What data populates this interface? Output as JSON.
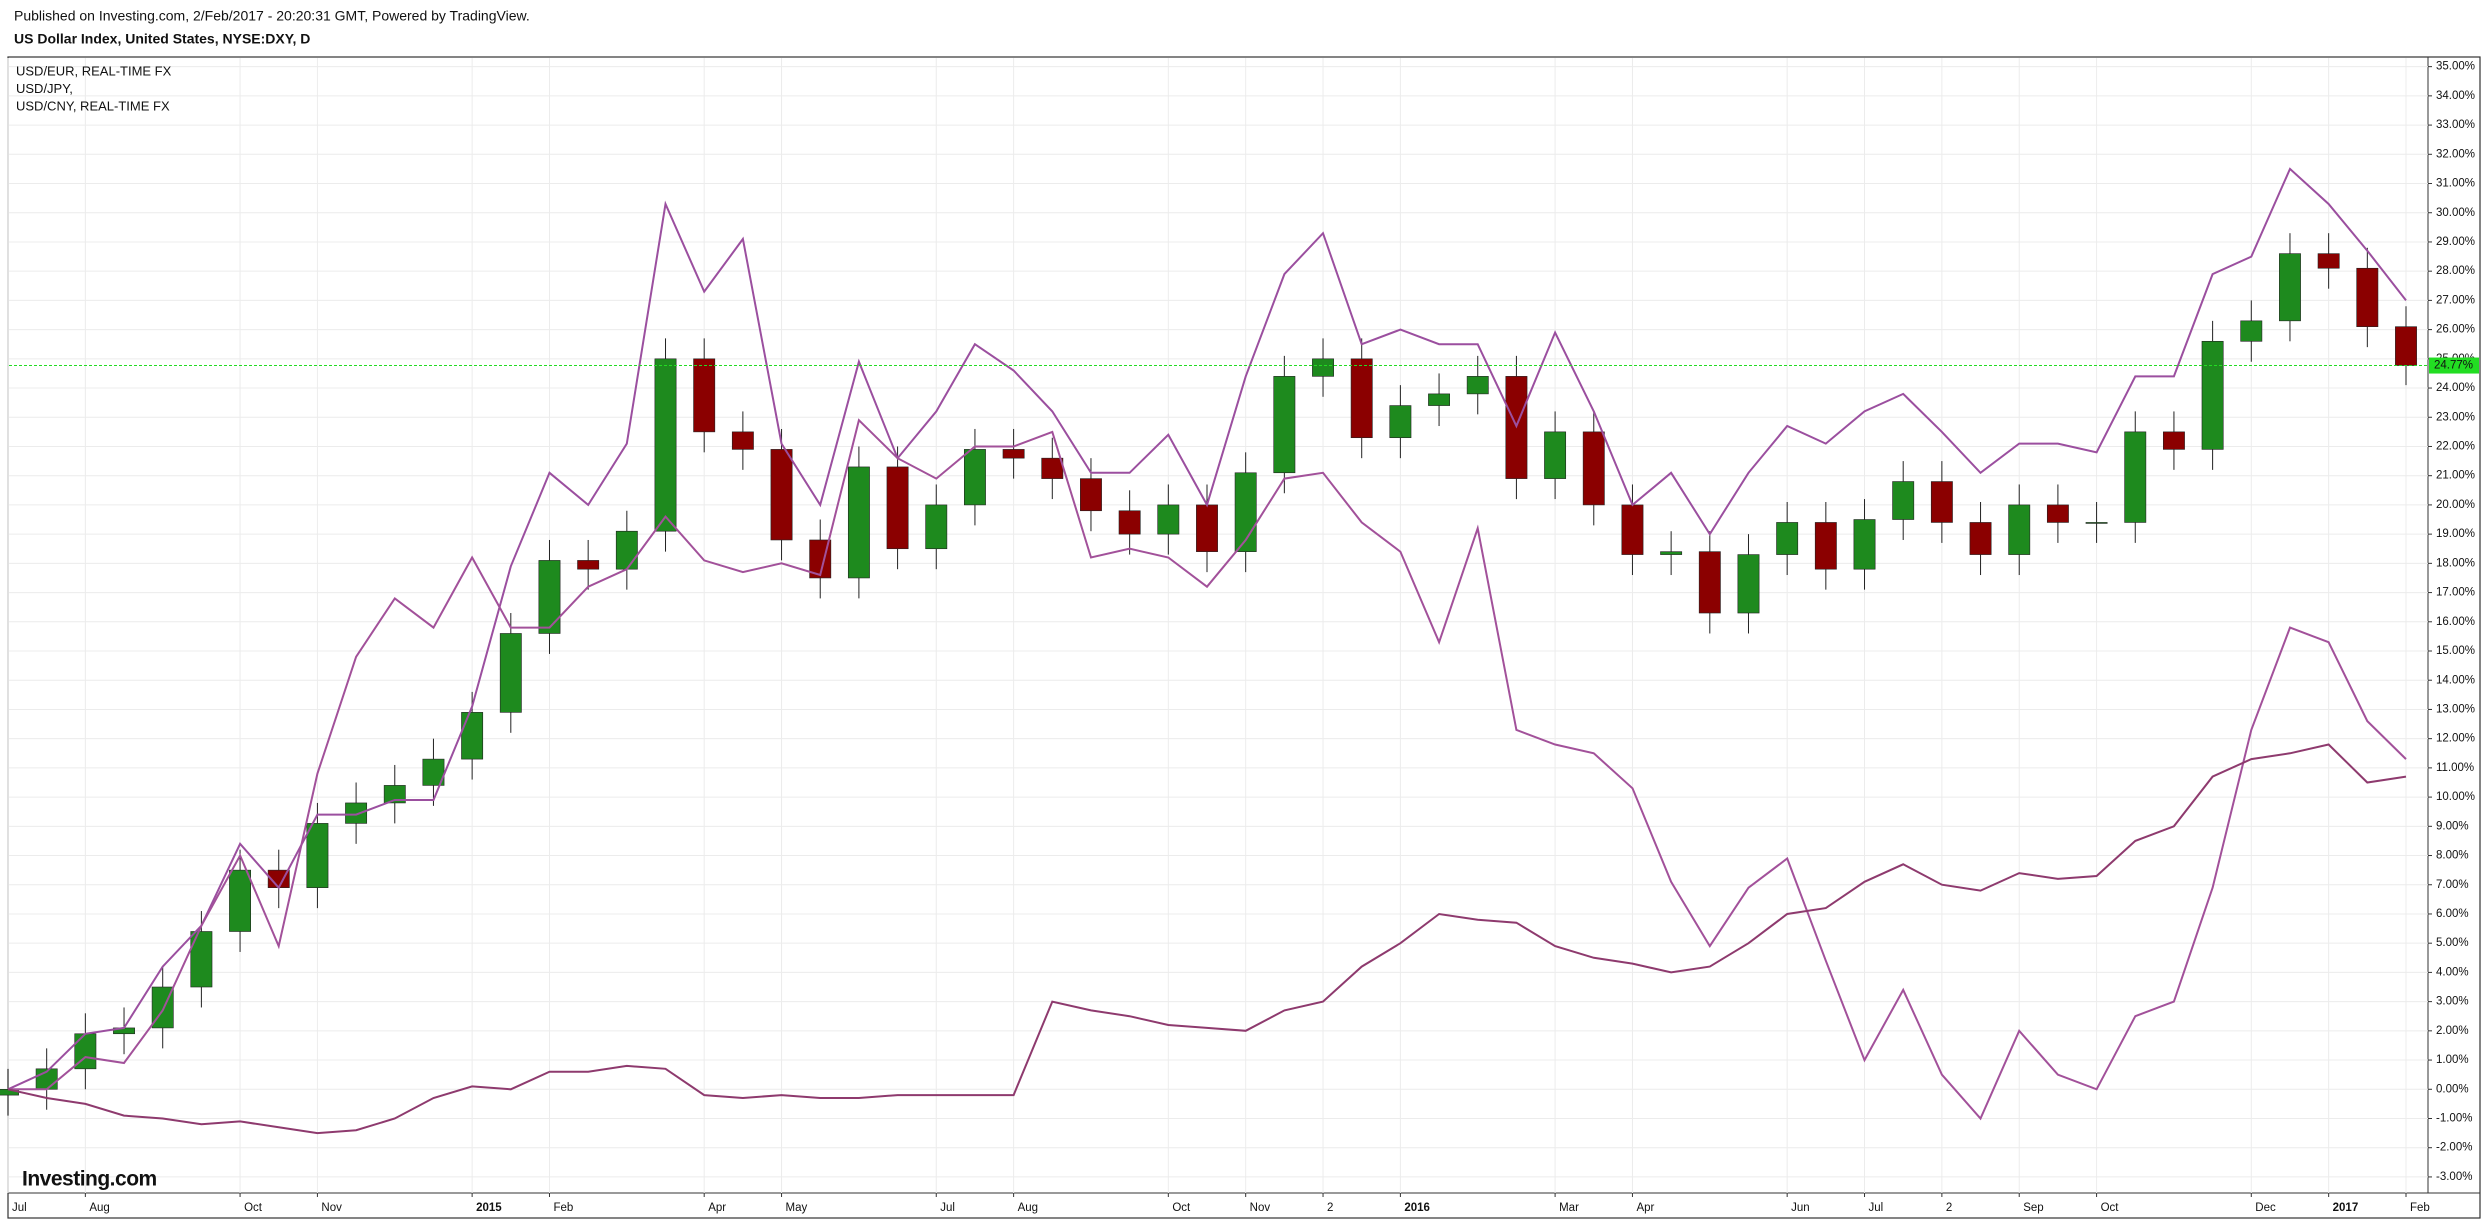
{
  "chart_data": {
    "type": "candlestick",
    "subtitle": "Published on Investing.com, 2/Feb/2017 - 20:20:31 GMT, Powered by TradingView.",
    "title": "US Dollar Index, United States, NYSE:DXY, D",
    "logo": "Investing.com",
    "categories": [
      "Jul",
      null,
      "Aug",
      null,
      null,
      null,
      "Oct",
      null,
      "Nov",
      null,
      null,
      null,
      "2015",
      null,
      "Feb",
      null,
      null,
      null,
      "Apr",
      null,
      "May",
      null,
      null,
      null,
      "Jul",
      null,
      "Aug",
      null,
      null,
      null,
      "Oct",
      null,
      "Nov",
      null,
      "2",
      null,
      "2016",
      null,
      null,
      null,
      "Mar",
      null,
      "Apr",
      null,
      null,
      null,
      "Jun",
      null,
      "Jul",
      null,
      "2",
      null,
      "Sep",
      null,
      "Oct",
      null,
      null,
      null,
      "Dec",
      null,
      "2017",
      null,
      "Feb"
    ],
    "candles": {
      "up_color": "#1e8a1e",
      "down_color": "#8b0000",
      "open": [
        -0.2,
        0,
        0.7,
        1.9,
        2.1,
        3.5,
        5.4,
        7.5,
        6.9,
        9.1,
        9.8,
        10.4,
        11.3,
        12.9,
        15.6,
        18.1,
        17.8,
        19.1,
        25,
        22.5,
        21.9,
        18.8,
        17.5,
        21.3,
        18.5,
        20,
        21.9,
        21.6,
        20.9,
        19.8,
        19,
        20,
        18.4,
        21.1,
        24.4,
        25,
        22.3,
        23.4,
        23.8,
        24.4,
        20.9,
        22.5,
        20,
        18.3,
        18.4,
        16.3,
        18.3,
        19.4,
        17.8,
        19.5,
        20.8,
        19.4,
        18.3,
        20,
        19.4,
        19.4,
        22.5,
        21.9,
        25.6,
        26.3,
        28.6,
        28.1,
        26.1
      ],
      "high": [
        0.7,
        1.4,
        2.6,
        2.8,
        4.2,
        6.1,
        8.2,
        8.2,
        9.8,
        10.5,
        11.1,
        12.0,
        13.6,
        16.3,
        18.8,
        18.8,
        19.8,
        25.7,
        25.7,
        23.2,
        22.6,
        19.5,
        22.0,
        22.0,
        20.7,
        22.6,
        22.6,
        22.3,
        21.6,
        20.5,
        20.7,
        20.7,
        21.8,
        25.1,
        25.7,
        25.7,
        24.1,
        24.5,
        25.1,
        25.1,
        23.2,
        23.2,
        20.7,
        19.1,
        19.1,
        19.0,
        20.1,
        20.1,
        20.2,
        21.5,
        21.5,
        20.1,
        20.7,
        20.7,
        20.1,
        23.2,
        23.2,
        26.3,
        27.0,
        29.3,
        29.3,
        28.8,
        26.8
      ],
      "low": [
        -0.9,
        -0.7,
        0.0,
        1.2,
        1.4,
        2.8,
        4.7,
        6.2,
        6.2,
        8.4,
        9.1,
        9.7,
        10.6,
        12.2,
        14.9,
        17.1,
        17.1,
        18.4,
        21.8,
        21.2,
        18.1,
        16.8,
        16.8,
        17.8,
        17.8,
        19.3,
        20.9,
        20.2,
        19.1,
        18.3,
        18.3,
        17.7,
        17.7,
        20.4,
        23.7,
        21.6,
        21.6,
        22.7,
        23.1,
        20.2,
        20.2,
        19.3,
        17.6,
        17.6,
        15.6,
        15.6,
        17.6,
        17.1,
        17.1,
        18.8,
        18.7,
        17.6,
        17.6,
        18.7,
        18.7,
        18.7,
        21.2,
        21.2,
        24.9,
        25.6,
        27.4,
        25.4,
        24.1
      ],
      "close": [
        0,
        0.7,
        1.9,
        2.1,
        3.5,
        5.4,
        7.5,
        6.9,
        9.1,
        9.8,
        10.4,
        11.3,
        12.9,
        15.6,
        18.1,
        17.8,
        19.1,
        25,
        22.5,
        21.9,
        18.8,
        17.5,
        21.3,
        18.5,
        20,
        21.9,
        21.6,
        20.9,
        19.8,
        19,
        20,
        18.4,
        21.1,
        24.4,
        25,
        22.3,
        23.4,
        23.8,
        24.4,
        20.9,
        22.5,
        20,
        18.3,
        18.4,
        16.3,
        18.3,
        19.4,
        17.8,
        19.5,
        20.8,
        19.4,
        18.3,
        20,
        19.4,
        19.4,
        22.5,
        21.9,
        25.6,
        26.3,
        28.6,
        28.1,
        26.1,
        24.77
      ]
    },
    "last_price": {
      "value": 24.77,
      "label": "24.77%",
      "color": "#22dd22"
    },
    "series": [
      {
        "name": "USD/EUR, REAL-TIME FX",
        "color": "#9b4f9f",
        "values": [
          0,
          0.6,
          1.9,
          2.1,
          4.2,
          5.6,
          8.4,
          6.9,
          9.4,
          9.4,
          9.9,
          9.9,
          13.1,
          17.9,
          21.1,
          20,
          22.1,
          30.3,
          27.3,
          29.1,
          22.1,
          20,
          24.9,
          21.6,
          23.2,
          25.5,
          24.6,
          23.2,
          21.1,
          21.1,
          22.4,
          20,
          24.4,
          27.9,
          29.3,
          25.5,
          26,
          25.5,
          25.5,
          22.7,
          25.9,
          23.2,
          20,
          21.1,
          19,
          21.1,
          22.7,
          22.1,
          23.2,
          23.8,
          22.5,
          21.1,
          22.1,
          22.1,
          21.8,
          24.4,
          24.4,
          27.9,
          28.5,
          31.5,
          30.3,
          28.7,
          27
        ]
      },
      {
        "name": "USD/JPY,",
        "color": "#a2519a",
        "values": [
          0,
          0,
          1.1,
          0.9,
          2.7,
          5.6,
          8,
          4.9,
          10.8,
          14.8,
          16.8,
          15.8,
          18.2,
          15.8,
          15.8,
          17.2,
          17.8,
          19.6,
          18.1,
          17.7,
          18,
          17.6,
          22.9,
          21.6,
          20.9,
          22,
          22,
          22.5,
          18.2,
          18.5,
          18.2,
          17.2,
          18.8,
          20.9,
          21.1,
          19.4,
          18.4,
          15.3,
          19.2,
          12.3,
          11.8,
          11.5,
          10.3,
          7.1,
          4.9,
          6.9,
          7.9,
          4.4,
          1,
          3.4,
          0.5,
          -1,
          2,
          0.5,
          0,
          2.5,
          3,
          6.9,
          12.3,
          15.8,
          15.3,
          12.6,
          11.3
        ]
      },
      {
        "name": "USD/CNY, REAL-TIME FX",
        "color": "#8e3a6e",
        "values": [
          0,
          -0.3,
          -0.5,
          -0.9,
          -1.0,
          -1.2,
          -1.1,
          -1.3,
          -1.5,
          -1.4,
          -1.0,
          -0.3,
          0.1,
          0.0,
          0.6,
          0.6,
          0.8,
          0.7,
          -0.2,
          -0.3,
          -0.2,
          -0.3,
          -0.3,
          -0.2,
          -0.2,
          -0.2,
          -0.2,
          3.0,
          2.7,
          2.5,
          2.2,
          2.1,
          2.0,
          2.7,
          3.0,
          4.2,
          5.0,
          6.0,
          5.8,
          5.7,
          4.9,
          4.5,
          4.3,
          4.0,
          4.2,
          5.0,
          6.0,
          6.2,
          7.1,
          7.7,
          7.0,
          6.8,
          7.4,
          7.2,
          7.3,
          8.5,
          9.0,
          10.7,
          11.3,
          11.5,
          11.8,
          10.5,
          10.7
        ]
      }
    ],
    "ylim": [
      -3.55,
      35.33
    ],
    "yticks": [
      {
        "value": 35,
        "label": "35.00%"
      },
      {
        "value": 34,
        "label": "34.00%"
      },
      {
        "value": 33,
        "label": "33.00%"
      },
      {
        "value": 32,
        "label": "32.00%"
      },
      {
        "value": 31,
        "label": "31.00%"
      },
      {
        "value": 30,
        "label": "30.00%"
      },
      {
        "value": 29,
        "label": "29.00%"
      },
      {
        "value": 28,
        "label": "28.00%"
      },
      {
        "value": 27,
        "label": "27.00%"
      },
      {
        "value": 26,
        "label": "26.00%"
      },
      {
        "value": 25,
        "label": "25.00%"
      },
      {
        "value": 24,
        "label": "24.00%"
      },
      {
        "value": 23,
        "label": "23.00%"
      },
      {
        "value": 22,
        "label": "22.00%"
      },
      {
        "value": 21,
        "label": "21.00%"
      },
      {
        "value": 20,
        "label": "20.00%"
      },
      {
        "value": 19,
        "label": "19.00%"
      },
      {
        "value": 18,
        "label": "18.00%"
      },
      {
        "value": 17,
        "label": "17.00%"
      },
      {
        "value": 16,
        "label": "16.00%"
      },
      {
        "value": 15,
        "label": "15.00%"
      },
      {
        "value": 14,
        "label": "14.00%"
      },
      {
        "value": 13,
        "label": "13.00%"
      },
      {
        "value": 12,
        "label": "12.00%"
      },
      {
        "value": 11,
        "label": "11.00%"
      },
      {
        "value": 10,
        "label": "10.00%"
      },
      {
        "value": 9,
        "label": "9.00%"
      },
      {
        "value": 8,
        "label": "8.00%"
      },
      {
        "value": 7,
        "label": "7.00%"
      },
      {
        "value": 6,
        "label": "6.00%"
      },
      {
        "value": 5,
        "label": "5.00%"
      },
      {
        "value": 4,
        "label": "4.00%"
      },
      {
        "value": 3,
        "label": "3.00%"
      },
      {
        "value": 2,
        "label": "2.00%"
      },
      {
        "value": 1,
        "label": "1.00%"
      },
      {
        "value": 0,
        "label": "0.00%"
      },
      {
        "value": -1,
        "label": "-1.00%"
      },
      {
        "value": -2,
        "label": "-2.00%"
      },
      {
        "value": -3,
        "label": "-3.00%"
      }
    ],
    "grid": true
  }
}
